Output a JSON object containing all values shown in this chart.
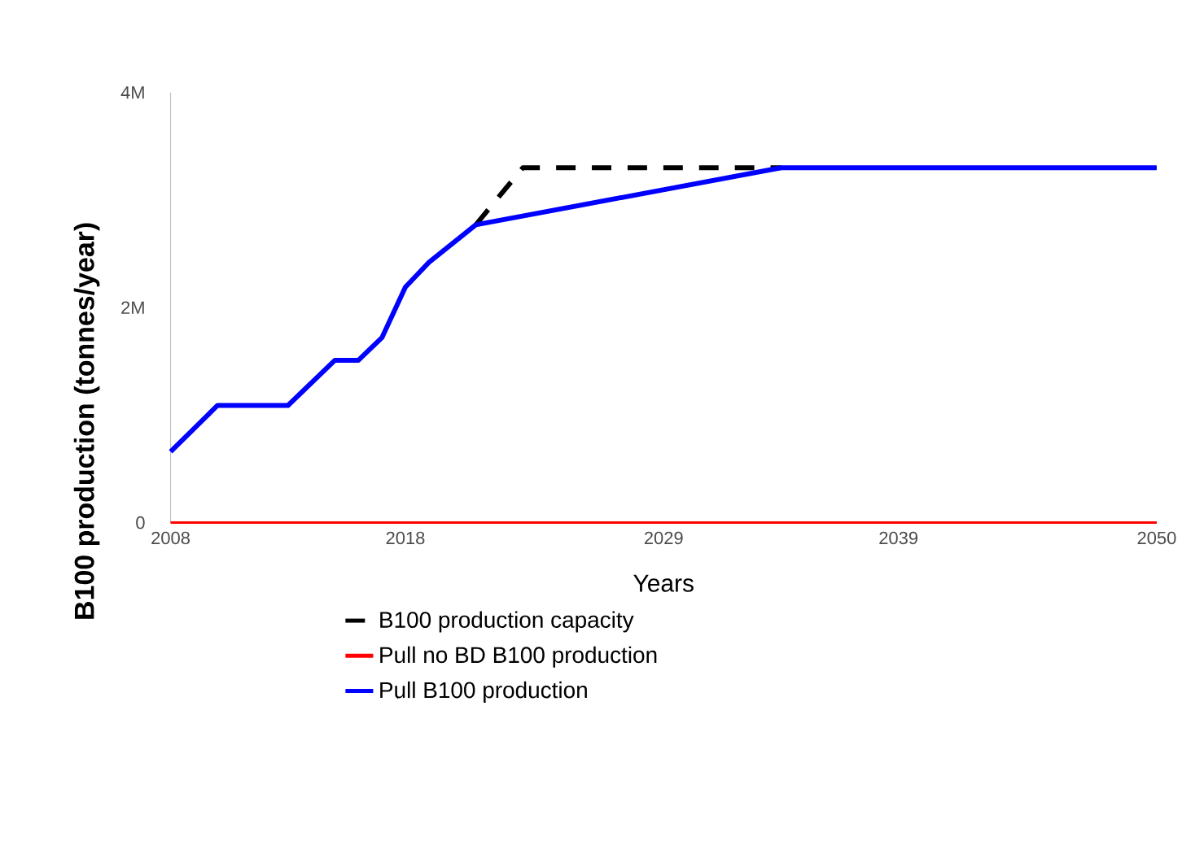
{
  "chart_data": {
    "type": "line",
    "xlabel": "Years",
    "ylabel": "B100 production (tonnes/year)",
    "xlim": [
      2008,
      2050
    ],
    "ylim": [
      0,
      4000000
    ],
    "xticks": [
      2008,
      2018,
      2029,
      2039,
      2050
    ],
    "yticks": [
      {
        "value": 0,
        "label": "0"
      },
      {
        "value": 2000000,
        "label": "2M"
      },
      {
        "value": 4000000,
        "label": "4M"
      }
    ],
    "legend": "bottom",
    "series": [
      {
        "name": "B100 production capacity",
        "color": "#000000",
        "line_style": "dashed",
        "x": [
          2021,
          2023,
          2034
        ],
        "values": [
          2770000,
          3300000,
          3300000
        ]
      },
      {
        "name": "Pull no BD B100 production",
        "color": "#ff0000",
        "line_style": "solid",
        "x": [
          2008,
          2050
        ],
        "values": [
          0,
          0
        ]
      },
      {
        "name": "Pull B100 production",
        "color": "#0000ff",
        "line_style": "solid",
        "x": [
          2008,
          2010,
          2013,
          2015,
          2016,
          2017,
          2018,
          2019,
          2021,
          2034,
          2050
        ],
        "values": [
          660000,
          1090000,
          1090000,
          1510000,
          1510000,
          1720000,
          2190000,
          2420000,
          2770000,
          3300000,
          3300000
        ]
      }
    ]
  }
}
